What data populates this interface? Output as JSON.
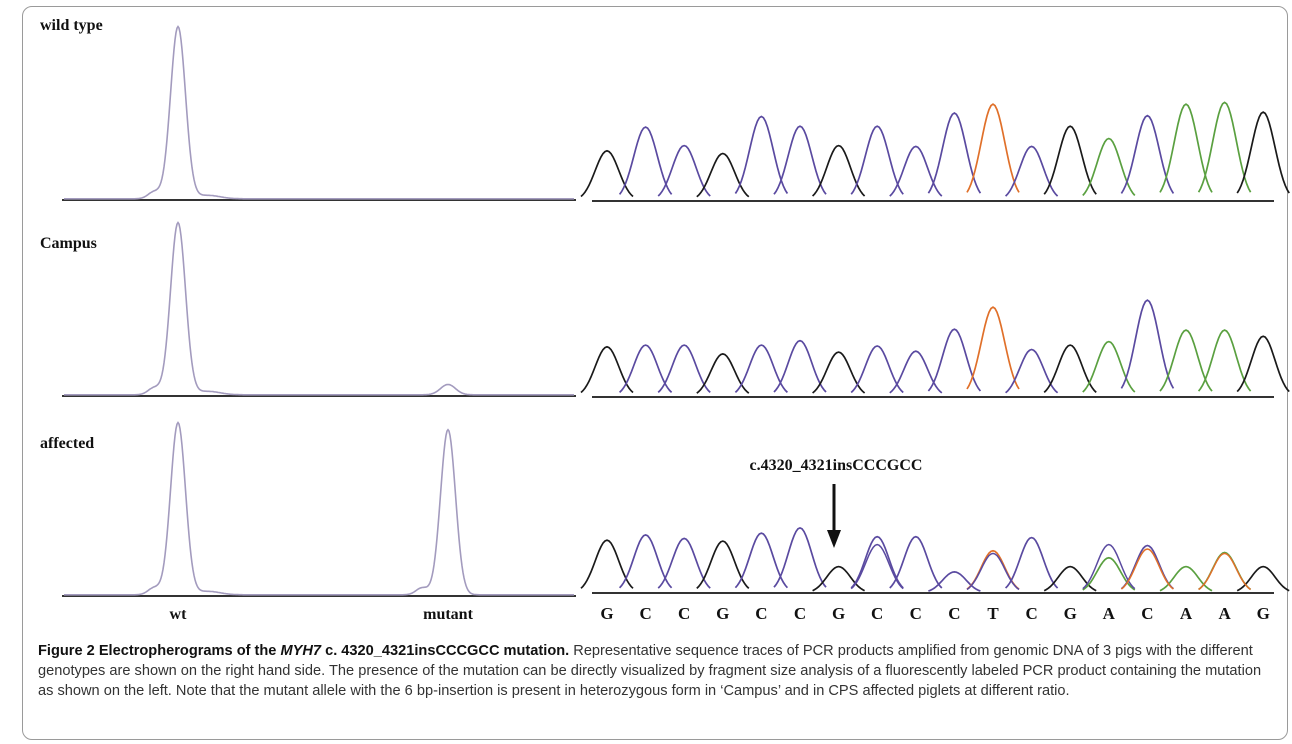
{
  "panels": [
    {
      "label": "wild type",
      "fragment_peaks": [
        {
          "allele": "wt",
          "relative_height": 1.0
        },
        {
          "allele": "mutant",
          "relative_height": 0.0
        }
      ]
    },
    {
      "label": "Campus",
      "fragment_peaks": [
        {
          "allele": "wt",
          "relative_height": 1.0
        },
        {
          "allele": "mutant",
          "relative_height": 0.06
        }
      ]
    },
    {
      "label": "affected",
      "fragment_peaks": [
        {
          "allele": "wt",
          "relative_height": 1.0
        },
        {
          "allele": "mutant",
          "relative_height": 0.96
        }
      ]
    }
  ],
  "fragment_axis": {
    "labels": [
      "wt",
      "mutant"
    ]
  },
  "sequence": [
    "G",
    "C",
    "C",
    "G",
    "C",
    "C",
    "G",
    "C",
    "C",
    "C",
    "T",
    "C",
    "G",
    "A",
    "C",
    "A",
    "A",
    "G"
  ],
  "annotation": {
    "text": "c.4320_4321insCCCGCC"
  },
  "colors": {
    "trace_gray": "#a39bbe",
    "base_black": "#1a1a1a",
    "base_purple": "#5a4aa0",
    "base_orange": "#e0702a",
    "base_green": "#5aa040"
  },
  "caption": {
    "figure_label": "Figure 2",
    "title_before": "Electropherograms of the ",
    "title_gene": "MYH7",
    "title_after": " c. 4320_4321insCCCGCC mutation.",
    "body": "Representative sequence traces of PCR products amplified from genomic DNA of 3 pigs with the different genotypes are shown on the right hand side. The presence of the mutation can be directly visualized by fragment size analysis of a fluorescently labeled PCR product containing the mutation as shown on the left. Note that the mutant allele with the 6 bp-insertion is present in heterozygous form in ‘Campus’ and in CPS affected piglets at different ratio."
  }
}
